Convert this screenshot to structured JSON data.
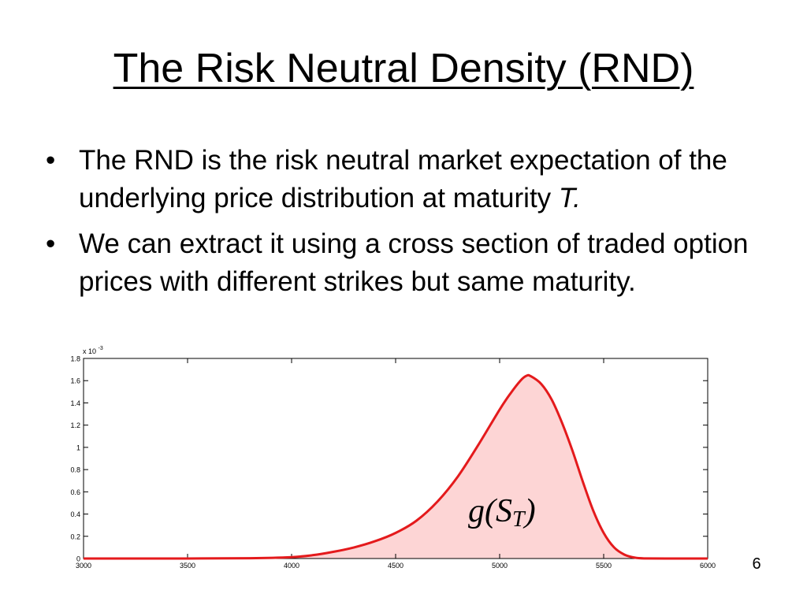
{
  "slide": {
    "title": "The Risk Neutral Density (RND)",
    "bullets": [
      {
        "text": "The RND is the risk neutral market expectation of the underlying price distribution at maturity ",
        "emphasis": "T."
      },
      {
        "text": "We can extract it using a cross section of traded option prices with different strikes but same maturity.",
        "emphasis": ""
      }
    ],
    "page_number": "6"
  },
  "chart_data": {
    "type": "area",
    "title": "",
    "xlabel": "",
    "ylabel": "",
    "xlim": [
      3000,
      6000
    ],
    "ylim": [
      0,
      1.8
    ],
    "y_multiplier_label": "x 10",
    "y_multiplier_exponent": "-3",
    "x_ticks": [
      "3000",
      "3500",
      "4000",
      "4500",
      "5000",
      "5500",
      "6000"
    ],
    "y_ticks": [
      "0",
      "0.2",
      "0.4",
      "0.6",
      "0.8",
      "1",
      "1.2",
      "1.4",
      "1.6",
      "1.8"
    ],
    "annotation": {
      "main": "g(S",
      "subscript": "T",
      "close": ")"
    },
    "line_color": "#e41a1c",
    "fill_color": "#fdd5d5",
    "grid": false,
    "series": [
      {
        "x": [
          3000,
          3500,
          3800,
          4000,
          4100,
          4200,
          4300,
          4400,
          4500,
          4600,
          4700,
          4800,
          4900,
          5000,
          5050,
          5100,
          5130,
          5150,
          5200,
          5250,
          5300,
          5350,
          5400,
          5450,
          5500,
          5550,
          5600,
          5650,
          5700,
          5800,
          6000
        ],
        "y": [
          0,
          0,
          0.003,
          0.013,
          0.03,
          0.06,
          0.1,
          0.155,
          0.23,
          0.34,
          0.51,
          0.74,
          1.03,
          1.34,
          1.48,
          1.6,
          1.645,
          1.64,
          1.57,
          1.43,
          1.22,
          0.97,
          0.69,
          0.43,
          0.23,
          0.1,
          0.035,
          0.008,
          0.001,
          0,
          0
        ]
      }
    ]
  }
}
